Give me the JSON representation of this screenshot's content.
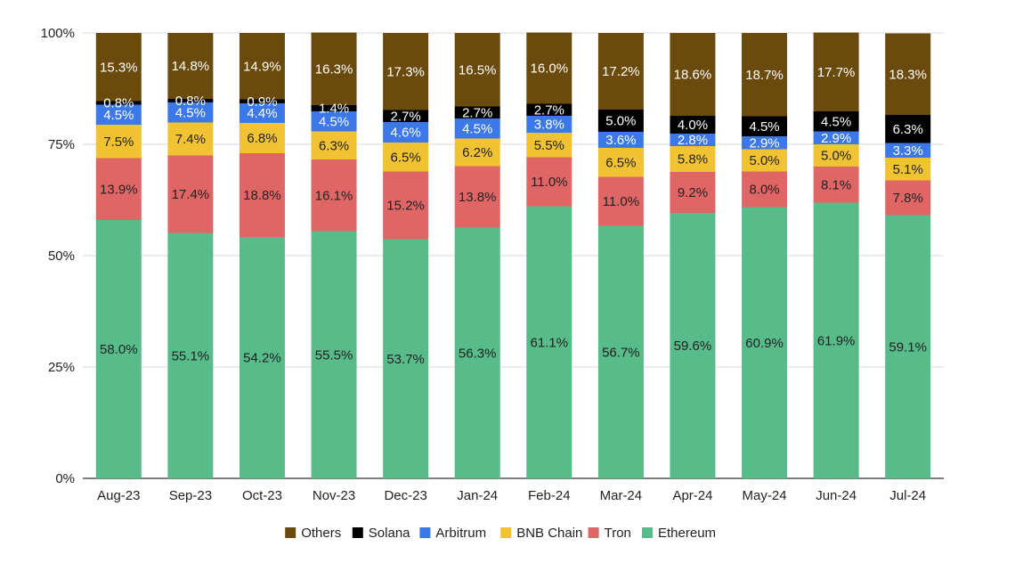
{
  "chart_data": {
    "type": "bar",
    "stacked": true,
    "percent": true,
    "categories": [
      "Aug-23",
      "Sep-23",
      "Oct-23",
      "Nov-23",
      "Dec-23",
      "Jan-24",
      "Feb-24",
      "Mar-24",
      "Apr-24",
      "May-24",
      "Jun-24",
      "Jul-24"
    ],
    "ylim": [
      0,
      100
    ],
    "yticks": [
      0,
      25,
      50,
      75,
      100
    ],
    "ytick_labels": [
      "0%",
      "25%",
      "50%",
      "75%",
      "100%"
    ],
    "grid": true,
    "legend_position": "bottom",
    "series": [
      {
        "name": "Ethereum",
        "color": "#57bb8a",
        "label_color": "#222222",
        "values": [
          58.0,
          55.1,
          54.2,
          55.5,
          53.7,
          56.3,
          61.1,
          56.7,
          59.6,
          60.9,
          61.9,
          59.1
        ],
        "labels": [
          "58.0%",
          "55.1%",
          "54.2%",
          "55.5%",
          "53.7%",
          "56.3%",
          "61.1%",
          "56.7%",
          "59.6%",
          "60.9%",
          "61.9%",
          "59.1%"
        ]
      },
      {
        "name": "Tron",
        "color": "#e06666",
        "label_color": "#222222",
        "values": [
          13.9,
          17.4,
          18.8,
          16.1,
          15.2,
          13.8,
          11.0,
          11.0,
          9.2,
          8.0,
          8.1,
          7.8
        ],
        "labels": [
          "13.9%",
          "17.4%",
          "18.8%",
          "16.1%",
          "15.2%",
          "13.8%",
          "11.0%",
          "11.0%",
          "9.2%",
          "8.0%",
          "8.1%",
          "7.8%"
        ]
      },
      {
        "name": "BNB Chain",
        "color": "#f1c232",
        "label_color": "#222222",
        "values": [
          7.5,
          7.4,
          6.8,
          6.3,
          6.5,
          6.2,
          5.5,
          6.5,
          5.8,
          5.0,
          5.0,
          5.1
        ],
        "labels": [
          "7.5%",
          "7.4%",
          "6.8%",
          "6.3%",
          "6.5%",
          "6.2%",
          "5.5%",
          "6.5%",
          "5.8%",
          "5.0%",
          "5.0%",
          "5.1%"
        ]
      },
      {
        "name": "Arbitrum",
        "color": "#3c78e8",
        "label_color": "#ffffff",
        "values": [
          4.5,
          4.5,
          4.4,
          4.5,
          4.6,
          4.5,
          3.8,
          3.6,
          2.8,
          2.9,
          2.9,
          3.3
        ],
        "labels": [
          "4.5%",
          "4.5%",
          "4.4%",
          "4.5%",
          "4.6%",
          "4.5%",
          "3.8%",
          "3.6%",
          "2.8%",
          "2.9%",
          "2.9%",
          "3.3%"
        ]
      },
      {
        "name": "Solana",
        "color": "#000000",
        "label_color": "#ffffff",
        "values": [
          0.8,
          0.8,
          0.9,
          1.4,
          2.7,
          2.7,
          2.7,
          5.0,
          4.0,
          4.5,
          4.5,
          6.3
        ],
        "labels": [
          "0.8%",
          "0.8%",
          "0.9%",
          "1.4%",
          "2.7%",
          "2.7%",
          "2.7%",
          "5.0%",
          "4.0%",
          "4.5%",
          "4.5%",
          "6.3%"
        ]
      },
      {
        "name": "Others",
        "color": "#6b4a0d",
        "label_color": "#ffffff",
        "values": [
          15.3,
          14.8,
          14.9,
          16.3,
          17.3,
          16.5,
          16.0,
          17.2,
          18.6,
          18.7,
          17.7,
          18.3
        ],
        "labels": [
          "15.3%",
          "14.8%",
          "14.9%",
          "16.3%",
          "17.3%",
          "16.5%",
          "16.0%",
          "17.2%",
          "18.6%",
          "18.7%",
          "17.7%",
          "18.3%"
        ]
      }
    ],
    "legend_order": [
      "Others",
      "Solana",
      "Arbitrum",
      "BNB Chain",
      "Tron",
      "Ethereum"
    ]
  }
}
